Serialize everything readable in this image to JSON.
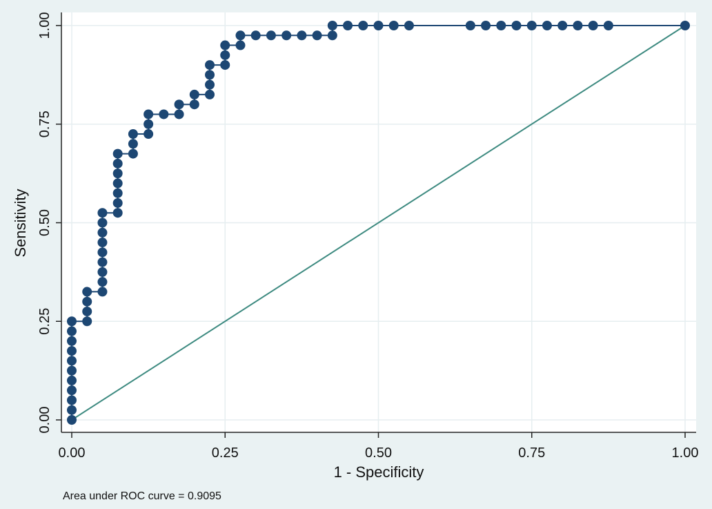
{
  "chart_data": {
    "type": "line",
    "xlabel": "1 - Specificity",
    "ylabel": "Sensitivity",
    "note": "Area under ROC curve = 0.9095",
    "xlim": [
      0,
      1
    ],
    "ylim": [
      0,
      1
    ],
    "x_ticks": [
      "0.00",
      "0.25",
      "0.50",
      "0.75",
      "1.00"
    ],
    "y_ticks": [
      "0.00",
      "0.25",
      "0.50",
      "0.75",
      "1.00"
    ],
    "grid": true,
    "colors": {
      "curve": "#1d4773",
      "reference": "#3d8a80",
      "plot_background": "#ffffff",
      "page_background": "#eaf2f3",
      "grid": "#e6eef0"
    },
    "series": [
      {
        "style": "line+markers",
        "points": [
          [
            0,
            0
          ],
          [
            0,
            0.025
          ],
          [
            0,
            0.05
          ],
          [
            0,
            0.075
          ],
          [
            0,
            0.1
          ],
          [
            0,
            0.125
          ],
          [
            0,
            0.15
          ],
          [
            0,
            0.175
          ],
          [
            0,
            0.2
          ],
          [
            0,
            0.225
          ],
          [
            0,
            0.25
          ],
          [
            0.025,
            0.25
          ],
          [
            0.025,
            0.275
          ],
          [
            0.025,
            0.3
          ],
          [
            0.025,
            0.325
          ],
          [
            0.05,
            0.325
          ],
          [
            0.05,
            0.35
          ],
          [
            0.05,
            0.375
          ],
          [
            0.05,
            0.4
          ],
          [
            0.05,
            0.425
          ],
          [
            0.05,
            0.45
          ],
          [
            0.05,
            0.475
          ],
          [
            0.05,
            0.5
          ],
          [
            0.05,
            0.525
          ],
          [
            0.075,
            0.525
          ],
          [
            0.075,
            0.55
          ],
          [
            0.075,
            0.575
          ],
          [
            0.075,
            0.6
          ],
          [
            0.075,
            0.625
          ],
          [
            0.075,
            0.65
          ],
          [
            0.075,
            0.675
          ],
          [
            0.1,
            0.675
          ],
          [
            0.1,
            0.7
          ],
          [
            0.1,
            0.725
          ],
          [
            0.125,
            0.725
          ],
          [
            0.125,
            0.75
          ],
          [
            0.125,
            0.775
          ],
          [
            0.15,
            0.775
          ],
          [
            0.175,
            0.775
          ],
          [
            0.175,
            0.8
          ],
          [
            0.2,
            0.8
          ],
          [
            0.2,
            0.825
          ],
          [
            0.225,
            0.825
          ],
          [
            0.225,
            0.85
          ],
          [
            0.225,
            0.875
          ],
          [
            0.225,
            0.9
          ],
          [
            0.25,
            0.9
          ],
          [
            0.25,
            0.925
          ],
          [
            0.25,
            0.95
          ],
          [
            0.275,
            0.95
          ],
          [
            0.275,
            0.975
          ],
          [
            0.3,
            0.975
          ],
          [
            0.325,
            0.975
          ],
          [
            0.35,
            0.975
          ],
          [
            0.375,
            0.975
          ],
          [
            0.4,
            0.975
          ],
          [
            0.425,
            0.975
          ],
          [
            0.425,
            1.0
          ],
          [
            0.45,
            1.0
          ],
          [
            0.475,
            1.0
          ],
          [
            0.5,
            1.0
          ],
          [
            0.525,
            1.0
          ],
          [
            0.55,
            1.0
          ],
          [
            0.65,
            1.0
          ],
          [
            0.675,
            1.0
          ],
          [
            0.7,
            1.0
          ],
          [
            0.725,
            1.0
          ],
          [
            0.75,
            1.0
          ],
          [
            0.775,
            1.0
          ],
          [
            0.8,
            1.0
          ],
          [
            0.825,
            1.0
          ],
          [
            0.85,
            1.0
          ],
          [
            0.875,
            1.0
          ],
          [
            1.0,
            1.0
          ]
        ]
      },
      {
        "style": "line",
        "points": [
          [
            0,
            0
          ],
          [
            1,
            1
          ]
        ]
      }
    ]
  }
}
